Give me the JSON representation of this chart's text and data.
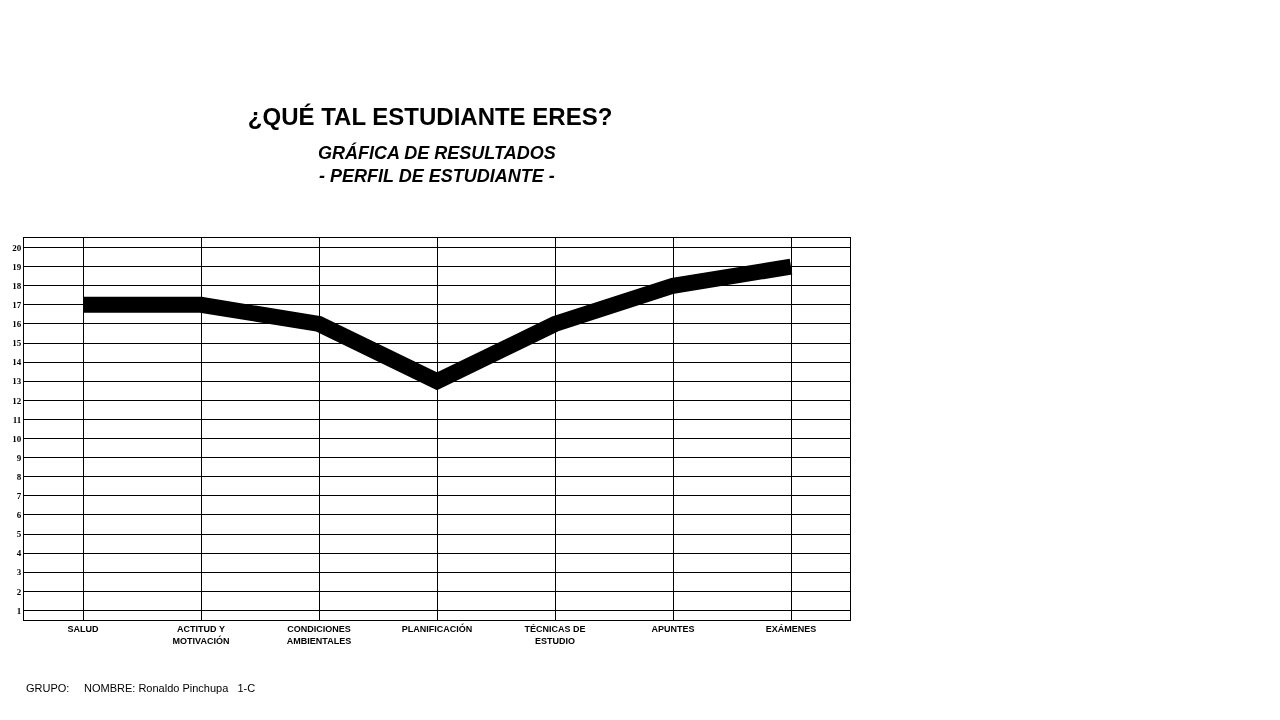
{
  "chart_data": {
    "type": "line",
    "title": "¿QUÉ TAL ESTUDIANTE ERES?",
    "subtitle": "GRÁFICA DE RESULTADOS\n- PERFIL DE ESTUDIANTE -",
    "categories": [
      "SALUD",
      "ACTITUD Y\nMOTIVACIÓN",
      "CONDICIONES\nAMBIENTALES",
      "PLANIFICACIÓN",
      "TÉCNICAS DE\nESTUDIO",
      "APUNTES",
      "EXÁMENES"
    ],
    "values": [
      17,
      17,
      16,
      13,
      16,
      18,
      19
    ],
    "color": "#000000",
    "ylim": [
      0.5,
      20.5
    ],
    "yticks": [
      1,
      2,
      3,
      4,
      5,
      6,
      7,
      8,
      9,
      10,
      11,
      12,
      13,
      14,
      15,
      16,
      17,
      18,
      19,
      20
    ],
    "grid": true,
    "marker": "none",
    "line_style": "solid",
    "legend": false,
    "annotations": [
      "GRUPO:",
      "NOMBRE: Ronaldo Pinchupa   1-C"
    ]
  }
}
